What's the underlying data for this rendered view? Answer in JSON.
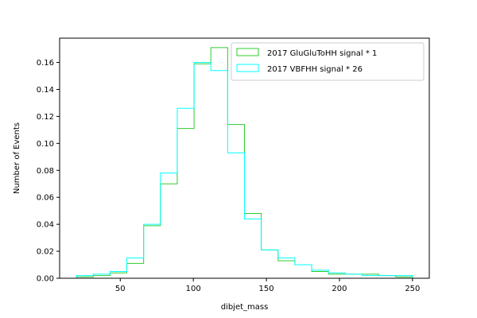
{
  "chart_data": {
    "type": "step-histogram",
    "xlabel": "dibjet_mass",
    "ylabel": "Number of Events",
    "xlim": [
      8.5,
      261.5
    ],
    "ylim": [
      0,
      0.178
    ],
    "xticks": [
      50,
      100,
      150,
      200,
      250
    ],
    "yticks": [
      0.0,
      0.02,
      0.04,
      0.06,
      0.08,
      0.1,
      0.12,
      0.14,
      0.16
    ],
    "ytick_labels": [
      "0.00",
      "0.02",
      "0.04",
      "0.06",
      "0.08",
      "0.10",
      "0.12",
      "0.14",
      "0.16"
    ],
    "grid": false,
    "legend_position": "top-right",
    "bin_edges": [
      20,
      31.5,
      43,
      54.5,
      66,
      77.5,
      89,
      100.5,
      112,
      123.5,
      135,
      146.5,
      158,
      169.5,
      181,
      192.5,
      204,
      215.5,
      227,
      238.5,
      250
    ],
    "series": [
      {
        "name": "2017 GluGluToHH signal * 1",
        "color": "#2ecc2e",
        "values": [
          0.001,
          0.002,
          0.004,
          0.011,
          0.039,
          0.07,
          0.111,
          0.159,
          0.171,
          0.114,
          0.048,
          0.021,
          0.013,
          0.01,
          0.005,
          0.003,
          0.003,
          0.003,
          0.002,
          0.001
        ]
      },
      {
        "name": "2017 VBFHH signal * 26",
        "color": "#00ffff",
        "values": [
          0.002,
          0.003,
          0.005,
          0.015,
          0.04,
          0.078,
          0.126,
          0.16,
          0.154,
          0.093,
          0.044,
          0.021,
          0.015,
          0.01,
          0.006,
          0.004,
          0.003,
          0.002,
          0.002,
          0.002
        ]
      }
    ]
  }
}
